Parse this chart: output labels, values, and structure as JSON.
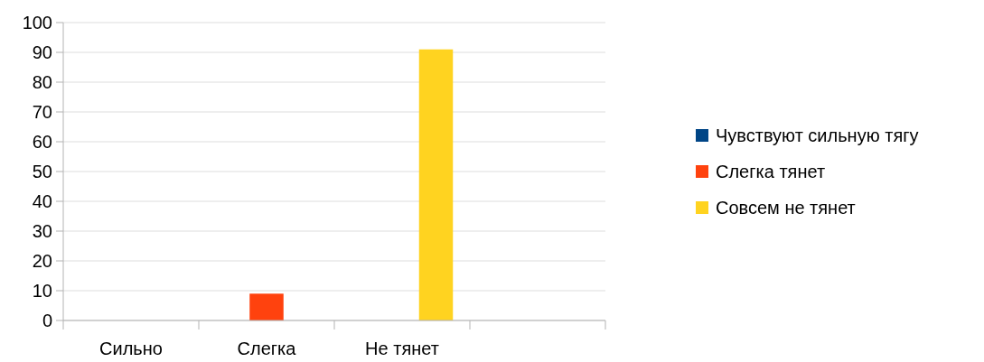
{
  "chart_data": {
    "type": "bar",
    "categories": [
      "Сильно",
      "Слегка",
      "Не тянет",
      null
    ],
    "series": [
      {
        "name": "Чувствуют сильную тягу",
        "color": "#004586",
        "values": [
          0,
          null,
          null,
          null
        ]
      },
      {
        "name": "Слегка тянет",
        "color": "#ff420e",
        "values": [
          null,
          9,
          null,
          null
        ]
      },
      {
        "name": "Совсем не тянет",
        "color": "#ffd320",
        "values": [
          null,
          null,
          91,
          null
        ]
      }
    ],
    "ylim": [
      0,
      100
    ],
    "yticks": [
      0,
      10,
      20,
      30,
      40,
      50,
      60,
      70,
      80,
      90,
      100
    ],
    "grid": "y",
    "legend": "right"
  }
}
